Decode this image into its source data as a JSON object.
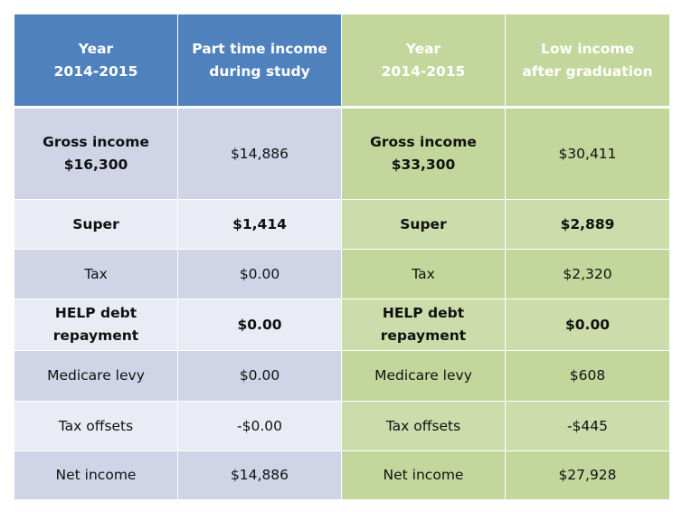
{
  "header": [
    {
      "line1": "Year",
      "line2": "2014-2015"
    },
    {
      "line1": "Part time income",
      "line2": "during study"
    },
    {
      "line1": "Year",
      "line2": "2014-2015"
    },
    {
      "line1": "Low income",
      "line2": "after graduation"
    }
  ],
  "rows": [
    {
      "c1a": "Gross income",
      "c1b": "$16,300",
      "c2": "$14,886",
      "c3a": "Gross income",
      "c3b": "$33,300",
      "c4": "$30,411",
      "bold": true
    },
    {
      "c1a": "Super",
      "c1b": "",
      "c2": "$1,414",
      "c3a": "Super",
      "c3b": "",
      "c4": "$2,889",
      "bold": true
    },
    {
      "c1a": "Tax",
      "c1b": "",
      "c2": "$0.00",
      "c3a": "Tax",
      "c3b": "",
      "c4": "$2,320",
      "bold": false
    },
    {
      "c1a": "HELP debt",
      "c1b": "repayment",
      "c2": "$0.00",
      "c3a": "HELP debt",
      "c3b": "repayment",
      "c4": "$0.00",
      "bold": true
    },
    {
      "c1a": "Medicare levy",
      "c1b": "",
      "c2": "$0.00",
      "c3a": "Medicare levy",
      "c3b": "",
      "c4": "$608",
      "bold": false
    },
    {
      "c1a": "Tax offsets",
      "c1b": "",
      "c2": "-$0.00",
      "c3a": "Tax offsets",
      "c3b": "",
      "c4": "-$445",
      "bold": false
    },
    {
      "c1a": "Net income",
      "c1b": "",
      "c2": "$14,886",
      "c3a": "Net income",
      "c3b": "",
      "c4": "$27,928",
      "bold": false
    }
  ]
}
